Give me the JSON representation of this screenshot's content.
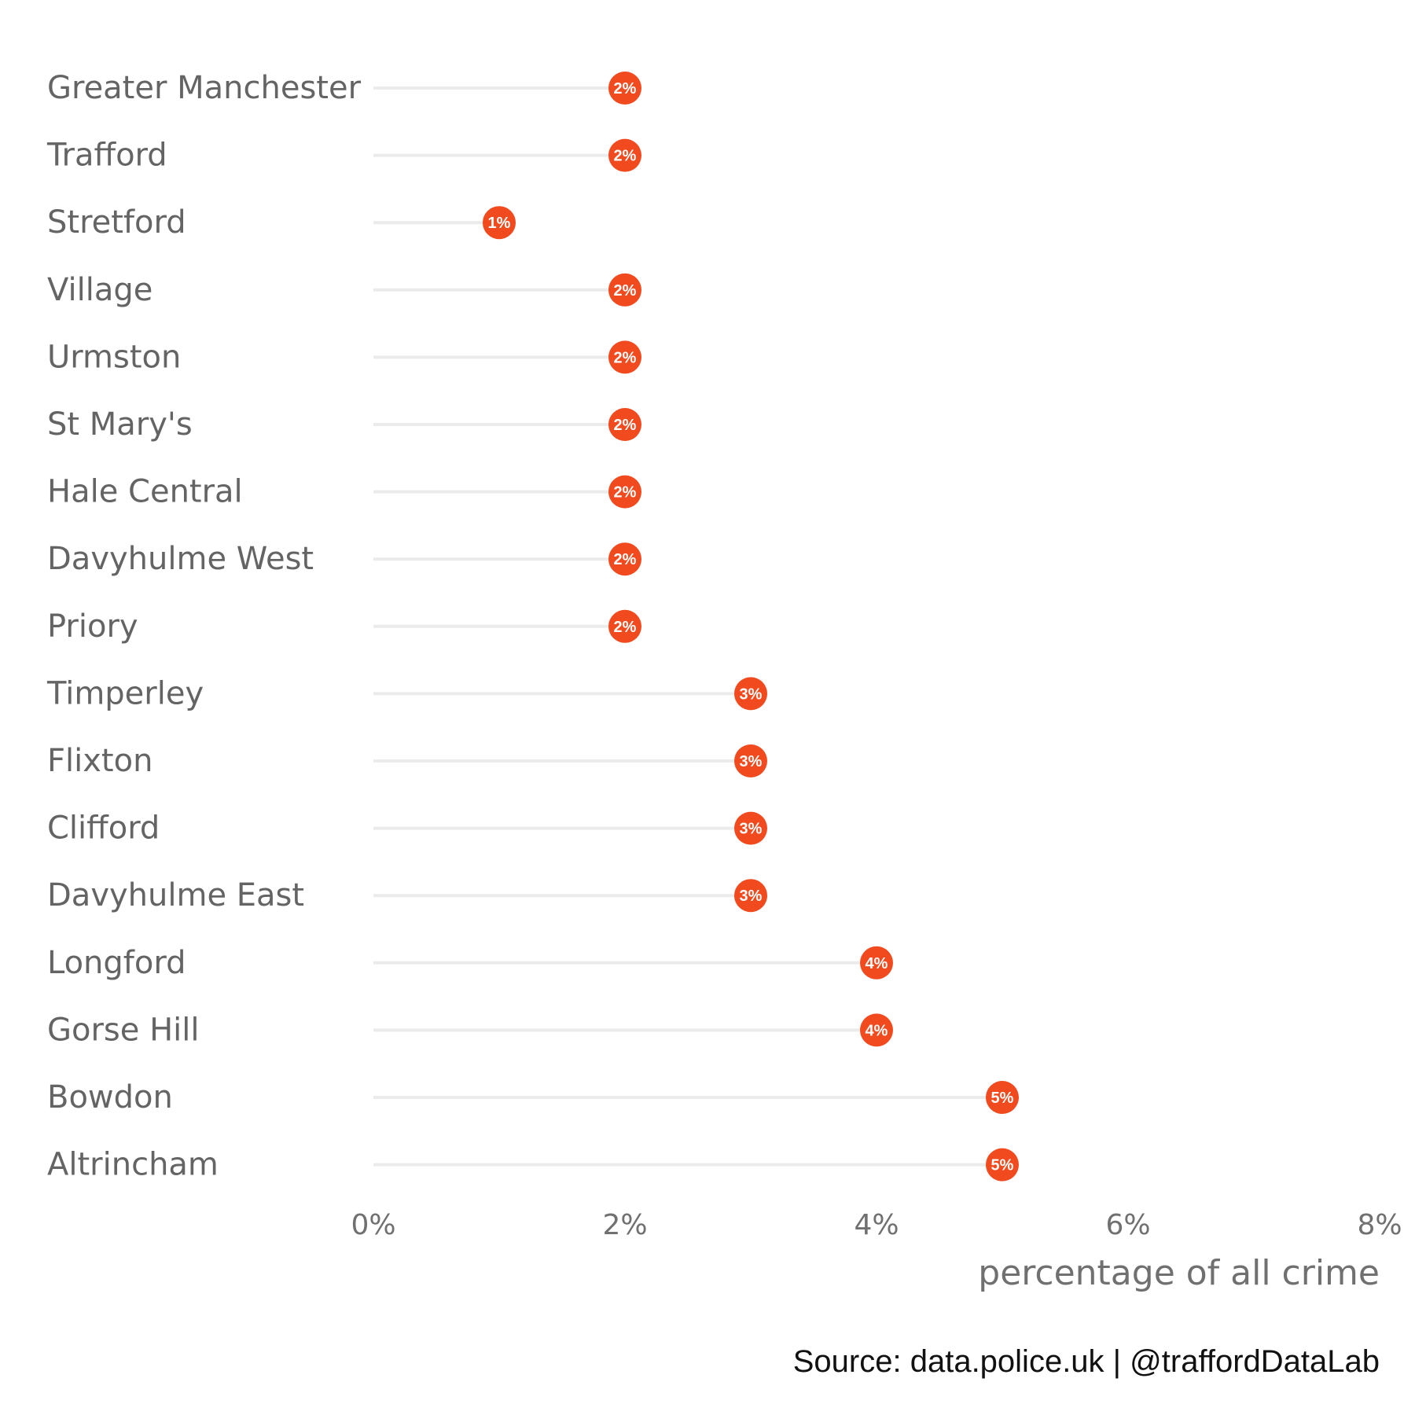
{
  "chart_data": {
    "type": "lollipop",
    "orientation": "horizontal",
    "categories": [
      "Greater Manchester",
      "Trafford",
      "Stretford",
      "Village",
      "Urmston",
      "St Mary's",
      "Hale Central",
      "Davyhulme West",
      "Priory",
      "Timperley",
      "Flixton",
      "Clifford",
      "Davyhulme East",
      "Longford",
      "Gorse Hill",
      "Bowdon",
      "Altrincham"
    ],
    "values": [
      2,
      2,
      1,
      2,
      2,
      2,
      2,
      2,
      2,
      3,
      3,
      3,
      3,
      4,
      4,
      5,
      5
    ],
    "value_labels": [
      "2%",
      "2%",
      "1%",
      "2%",
      "2%",
      "2%",
      "2%",
      "2%",
      "2%",
      "3%",
      "3%",
      "3%",
      "3%",
      "4%",
      "4%",
      "5%",
      "5%"
    ],
    "xlim": [
      0,
      8
    ],
    "xticks": [
      0,
      2,
      4,
      6,
      8
    ],
    "xtick_labels": [
      "0%",
      "2%",
      "4%",
      "6%",
      "8%"
    ],
    "xlabel": "percentage of all crime",
    "caption": "Source: data.police.uk  |  @traffordDataLab",
    "grid": false,
    "point_color": "#f14a1e",
    "stem_color": "#ebebeb"
  }
}
